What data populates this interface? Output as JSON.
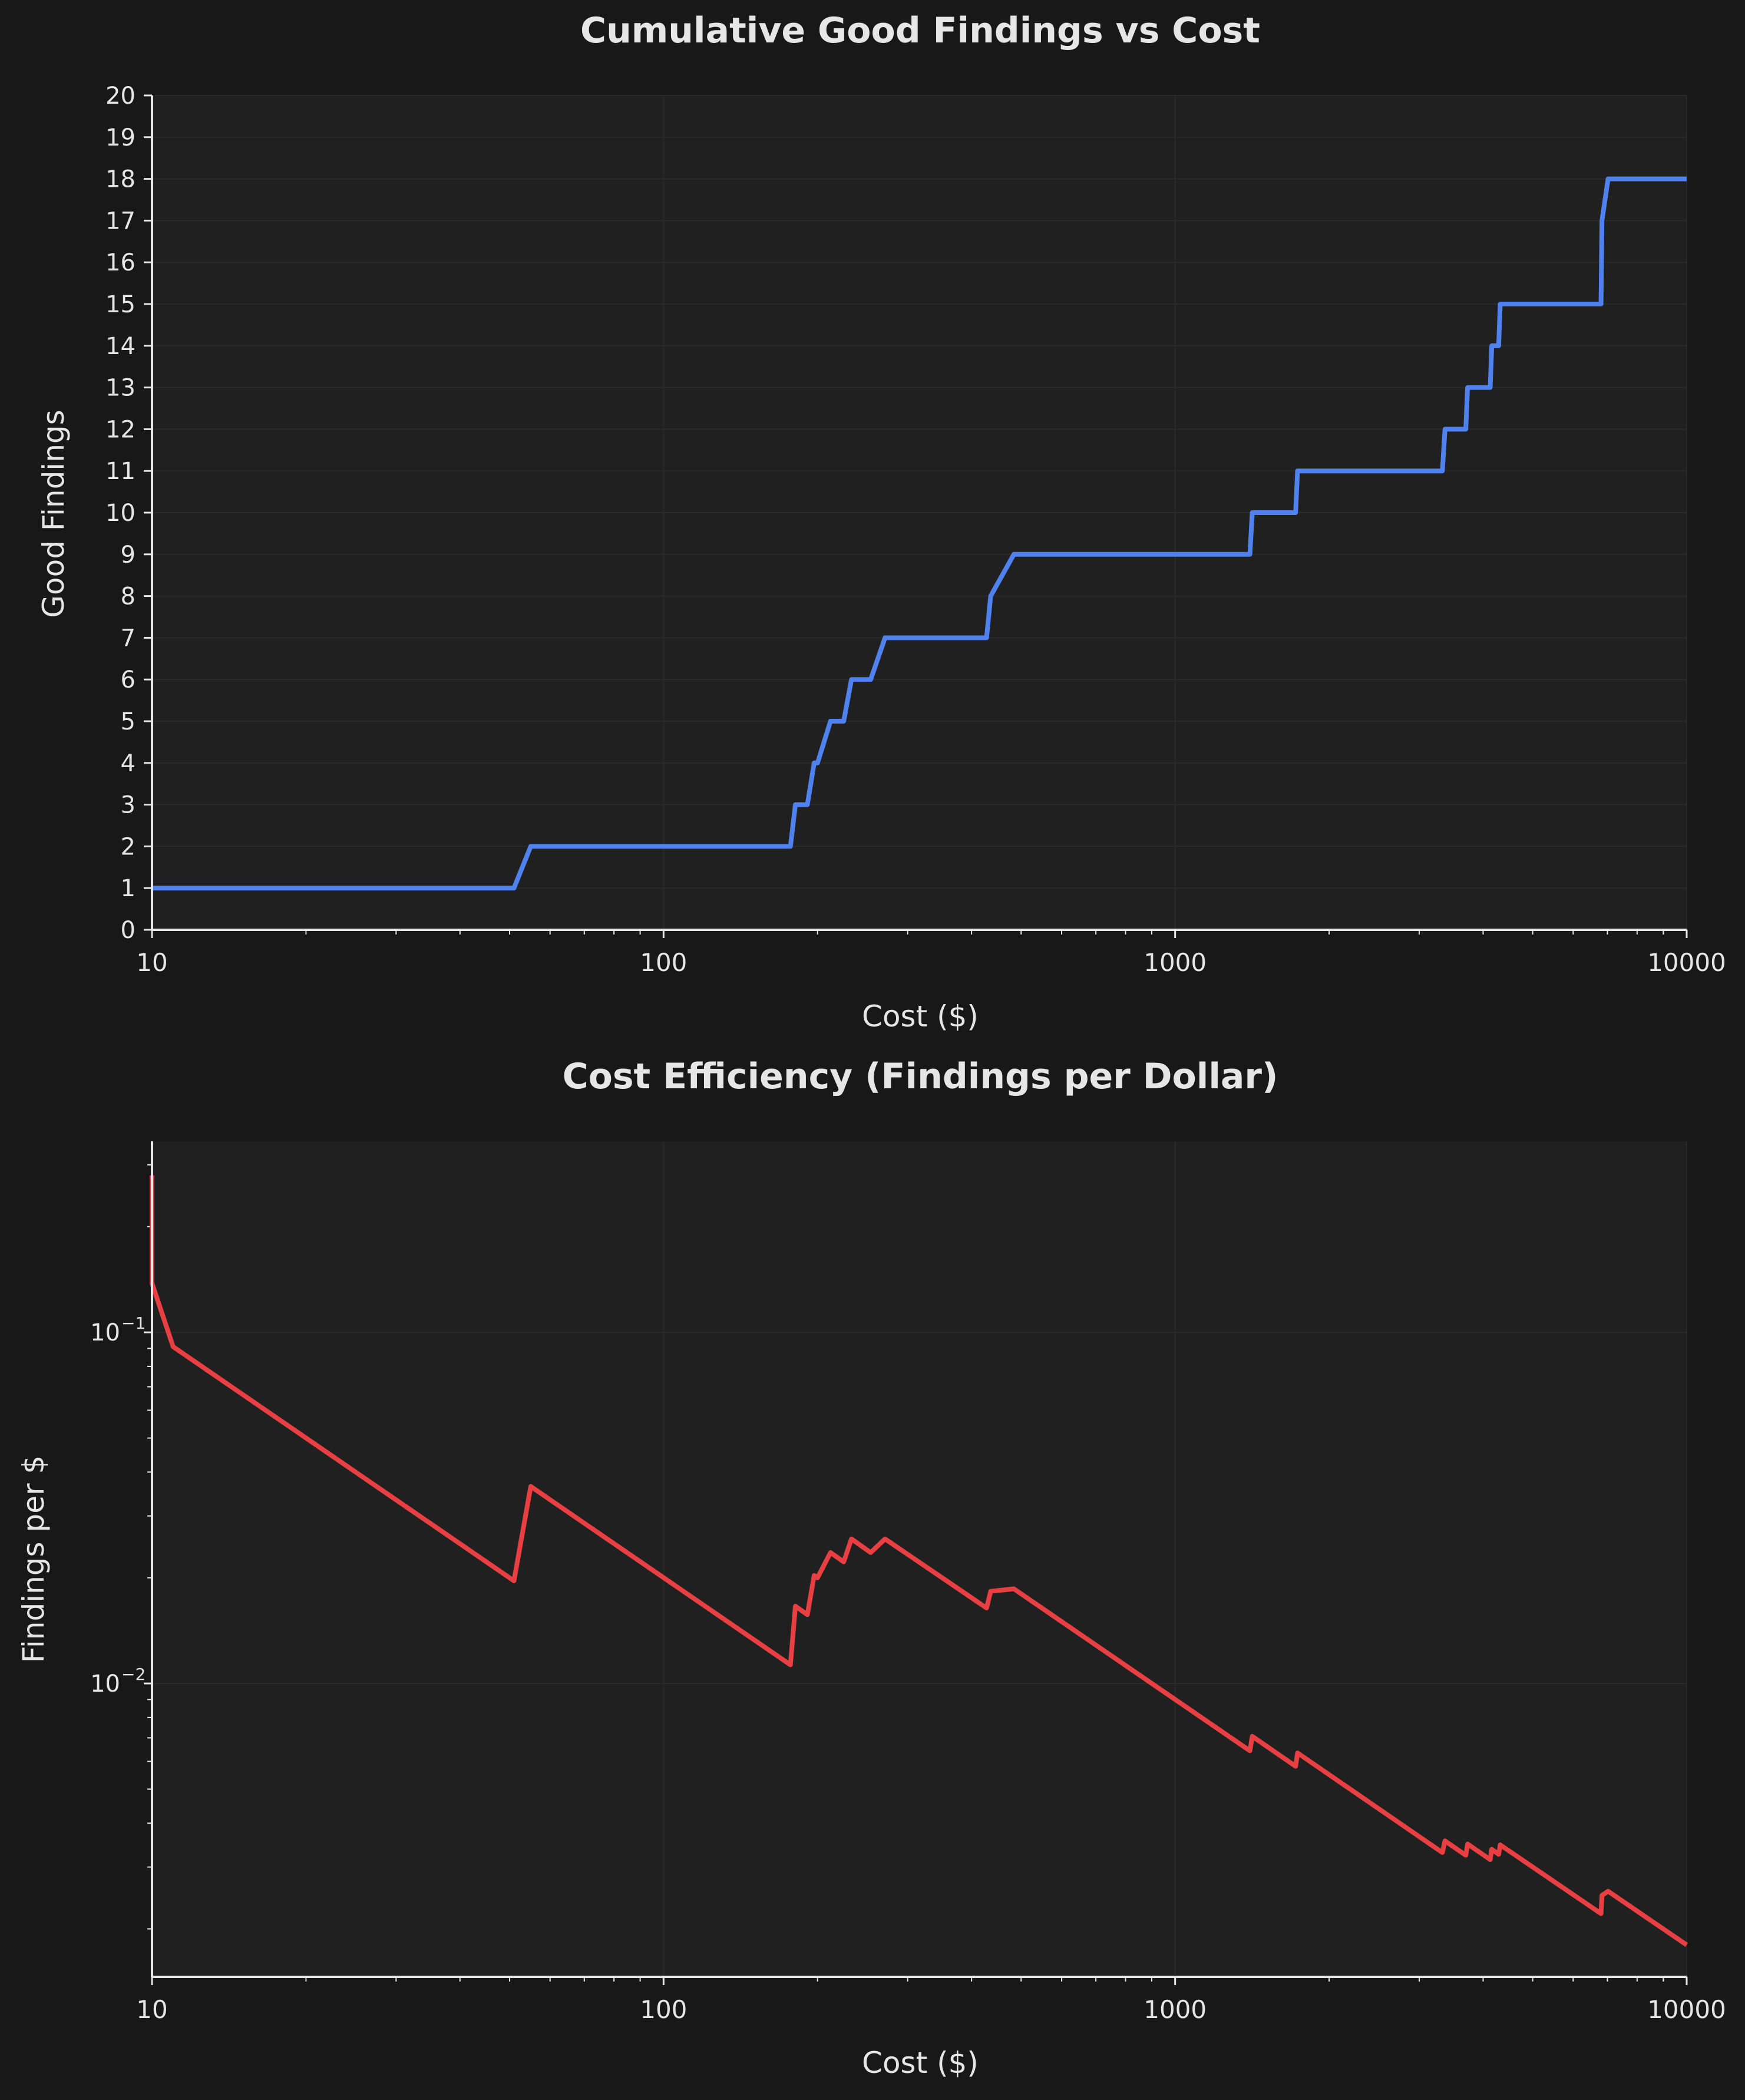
{
  "colors": {
    "background": "#181818",
    "plot_bg": "#202020",
    "grid": "#2a2a2a",
    "axis": "#e6e6e6",
    "text": "#e6e6e6",
    "series_findings": "#4f82ef",
    "series_efficiency": "#e84042"
  },
  "chart_data": [
    {
      "type": "line",
      "title": "Cumulative Good Findings vs Cost",
      "xlabel": "Cost ($)",
      "ylabel": "Good Findings",
      "xscale": "log",
      "yscale": "linear",
      "xlim": [
        10,
        10000
      ],
      "ylim": [
        0,
        20
      ],
      "grid": true,
      "legend": "none",
      "x_ticks": [
        {
          "value": 10,
          "label": "10"
        },
        {
          "value": 100,
          "label": "100"
        },
        {
          "value": 1000,
          "label": "1000"
        },
        {
          "value": 10000,
          "label": "10000"
        }
      ],
      "y_ticks": [
        {
          "value": 0,
          "label": "0"
        },
        {
          "value": 1,
          "label": "1"
        },
        {
          "value": 2,
          "label": "2"
        },
        {
          "value": 3,
          "label": "3"
        },
        {
          "value": 4,
          "label": "4"
        },
        {
          "value": 5,
          "label": "5"
        },
        {
          "value": 6,
          "label": "6"
        },
        {
          "value": 7,
          "label": "7"
        },
        {
          "value": 8,
          "label": "8"
        },
        {
          "value": 9,
          "label": "9"
        },
        {
          "value": 10,
          "label": "10"
        },
        {
          "value": 11,
          "label": "11"
        },
        {
          "value": 12,
          "label": "12"
        },
        {
          "value": 13,
          "label": "13"
        },
        {
          "value": 14,
          "label": "14"
        },
        {
          "value": 15,
          "label": "15"
        },
        {
          "value": 16,
          "label": "16"
        },
        {
          "value": 17,
          "label": "17"
        },
        {
          "value": 18,
          "label": "18"
        },
        {
          "value": 19,
          "label": "19"
        },
        {
          "value": 20,
          "label": "20"
        }
      ],
      "series": [
        {
          "x": [
            10,
            51,
            55,
            177,
            181,
            191,
            197,
            200,
            212,
            225,
            233,
            254,
            271,
            428,
            436,
            484,
            1400,
            1415,
            1720,
            1735,
            3330,
            3370,
            3700,
            3730,
            4130,
            4160,
            4290,
            4320,
            6800,
            6830,
            7020,
            10000
          ],
          "y": [
            1,
            1,
            2,
            2,
            3,
            3,
            4,
            4,
            5,
            5,
            6,
            6,
            7,
            7,
            8,
            9,
            9,
            10,
            10,
            11,
            11,
            12,
            12,
            13,
            13,
            14,
            14,
            15,
            15,
            17,
            18,
            18
          ]
        }
      ]
    },
    {
      "type": "line",
      "title": "Cost Efficiency (Findings per Dollar)",
      "xlabel": "Cost ($)",
      "ylabel": "Findings per $",
      "xscale": "log",
      "yscale": "log",
      "xlim": [
        10,
        10000
      ],
      "ylim": [
        0.00146,
        0.35
      ],
      "grid": true,
      "legend": "none",
      "x_ticks": [
        {
          "value": 10,
          "label": "10"
        },
        {
          "value": 100,
          "label": "100"
        },
        {
          "value": 1000,
          "label": "1000"
        },
        {
          "value": 10000,
          "label": "10000"
        }
      ],
      "y_ticks": [
        {
          "value": 0.1,
          "label": "10",
          "exponent": "−1"
        },
        {
          "value": 0.01,
          "label": "10",
          "exponent": "−2"
        }
      ],
      "series": [
        {
          "x": [
            10,
            10,
            11,
            51,
            55,
            177,
            181,
            191,
            197,
            200,
            212,
            225,
            233,
            254,
            271,
            428,
            436,
            484,
            1400,
            1415,
            1720,
            1735,
            3330,
            3370,
            3700,
            3730,
            4130,
            4160,
            4290,
            4320,
            6800,
            6830,
            7020,
            10000
          ],
          "y": [
            0.28,
            0.138,
            0.091,
            0.0196,
            0.0364,
            0.0113,
            0.0166,
            0.0157,
            0.0203,
            0.02,
            0.0236,
            0.0222,
            0.0258,
            0.0236,
            0.0258,
            0.0164,
            0.0183,
            0.0186,
            0.00643,
            0.00707,
            0.00581,
            0.00634,
            0.0033,
            0.00356,
            0.00324,
            0.00349,
            0.00315,
            0.00337,
            0.00326,
            0.00347,
            0.00221,
            0.00249,
            0.00256,
            0.0018
          ]
        }
      ]
    }
  ]
}
